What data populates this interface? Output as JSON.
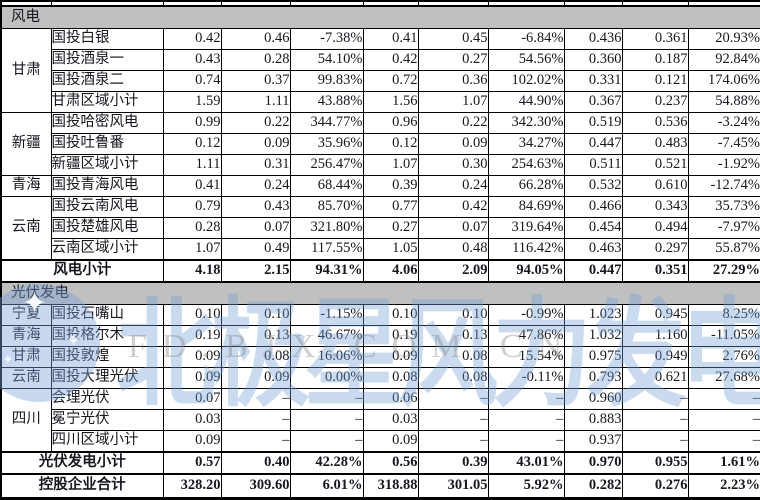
{
  "watermark": {
    "text_cn": "北极星风力发电网",
    "text_latin": "FD.BJX.COM.CN",
    "star_glyph": "✦",
    "colors": {
      "logo_blue": "rgba(124,163,214,0.42)",
      "text_blue": "rgba(116,160,216,0.38)",
      "text_gray": "rgba(128,128,132,0.38)"
    }
  },
  "colors": {
    "section_header_bg": "#c0c0c0",
    "border": "#000000",
    "text": "#17171f",
    "table_bg": "#ffffff"
  },
  "table": {
    "rows": [
      {
        "kind": "section",
        "label": "风电"
      },
      {
        "kind": "data",
        "region": "甘肃",
        "region_span": 4,
        "name": "国投白银",
        "v": [
          "0.42",
          "0.46",
          "-7.38%",
          "0.41",
          "0.45",
          "-6.84%",
          "0.436",
          "0.361",
          "20.93%"
        ]
      },
      {
        "kind": "data",
        "name": "国投酒泉一",
        "v": [
          "0.43",
          "0.28",
          "54.10%",
          "0.42",
          "0.27",
          "54.56%",
          "0.360",
          "0.187",
          "92.84%"
        ]
      },
      {
        "kind": "data",
        "name": "国投酒泉二",
        "v": [
          "0.74",
          "0.37",
          "99.83%",
          "0.72",
          "0.36",
          "102.02%",
          "0.331",
          "0.121",
          "174.06%"
        ]
      },
      {
        "kind": "data",
        "name": "甘肃区域小计",
        "v": [
          "1.59",
          "1.11",
          "43.88%",
          "1.56",
          "1.07",
          "44.90%",
          "0.367",
          "0.237",
          "54.88%"
        ]
      },
      {
        "kind": "data",
        "region": "新疆",
        "region_span": 3,
        "name": "国投哈密风电",
        "v": [
          "0.99",
          "0.22",
          "344.77%",
          "0.96",
          "0.22",
          "342.30%",
          "0.519",
          "0.536",
          "-3.24%"
        ]
      },
      {
        "kind": "data",
        "name": "国投吐鲁番",
        "v": [
          "0.12",
          "0.09",
          "35.96%",
          "0.12",
          "0.09",
          "34.27%",
          "0.447",
          "0.483",
          "-7.45%"
        ]
      },
      {
        "kind": "data",
        "name": "新疆区域小计",
        "v": [
          "1.11",
          "0.31",
          "256.47%",
          "1.07",
          "0.30",
          "254.63%",
          "0.511",
          "0.521",
          "-1.92%"
        ]
      },
      {
        "kind": "data",
        "region": "青海",
        "region_span": 1,
        "name": "国投青海风电",
        "v": [
          "0.41",
          "0.24",
          "68.44%",
          "0.39",
          "0.24",
          "66.28%",
          "0.532",
          "0.610",
          "-12.74%"
        ]
      },
      {
        "kind": "data",
        "region": "云南",
        "region_span": 3,
        "name": "国投云南风电",
        "v": [
          "0.79",
          "0.43",
          "85.70%",
          "0.77",
          "0.42",
          "84.69%",
          "0.466",
          "0.343",
          "35.73%"
        ]
      },
      {
        "kind": "data",
        "name": "国投楚雄风电",
        "v": [
          "0.28",
          "0.07",
          "321.80%",
          "0.27",
          "0.07",
          "319.64%",
          "0.454",
          "0.494",
          "-7.97%"
        ]
      },
      {
        "kind": "data",
        "name": "云南区域小计",
        "v": [
          "1.07",
          "0.49",
          "117.55%",
          "1.05",
          "0.48",
          "116.42%",
          "0.463",
          "0.297",
          "55.87%"
        ]
      },
      {
        "kind": "subtotal",
        "label": "风电小计",
        "v": [
          "4.18",
          "2.15",
          "94.31%",
          "4.06",
          "2.09",
          "94.05%",
          "0.447",
          "0.351",
          "27.29%"
        ]
      },
      {
        "kind": "section",
        "label": "光伏发电"
      },
      {
        "kind": "data",
        "region": "宁夏",
        "region_span": 1,
        "name": "国投石嘴山",
        "v": [
          "0.10",
          "0.10",
          "-1.15%",
          "0.10",
          "0.10",
          "-0.99%",
          "1.023",
          "0.945",
          "8.25%"
        ]
      },
      {
        "kind": "data",
        "region": "青海",
        "region_span": 1,
        "name": "国投格尔木",
        "v": [
          "0.19",
          "0.13",
          "46.67%",
          "0.19",
          "0.13",
          "47.86%",
          "1.032",
          "1.160",
          "-11.05%"
        ]
      },
      {
        "kind": "data",
        "region": "甘肃",
        "region_span": 1,
        "name": "国投敦煌",
        "v": [
          "0.09",
          "0.08",
          "16.06%",
          "0.09",
          "0.08",
          "15.54%",
          "0.975",
          "0.949",
          "2.76%"
        ]
      },
      {
        "kind": "data",
        "region": "云南",
        "region_span": 1,
        "name": "国投大理光伏",
        "v": [
          "0.09",
          "0.09",
          "0.00%",
          "0.08",
          "0.08",
          "-0.11%",
          "0.793",
          "0.621",
          "27.68%"
        ]
      },
      {
        "kind": "data",
        "region": "四川",
        "region_span": 3,
        "name": "会理光伏",
        "v": [
          "0.07",
          "–",
          "–",
          "0.06",
          "–",
          "–",
          "0.960",
          "–",
          "–"
        ]
      },
      {
        "kind": "data",
        "name": "冕宁光伏",
        "v": [
          "0.03",
          "–",
          "–",
          "0.03",
          "–",
          "–",
          "0.883",
          "–",
          "–"
        ]
      },
      {
        "kind": "data",
        "name": "四川区域小计",
        "v": [
          "0.09",
          "–",
          "–",
          "0.09",
          "–",
          "–",
          "0.937",
          "–",
          "–"
        ]
      },
      {
        "kind": "subtotal",
        "label": "光伏发电小计",
        "v": [
          "0.57",
          "0.40",
          "42.28%",
          "0.56",
          "0.39",
          "43.01%",
          "0.970",
          "0.955",
          "1.61%"
        ]
      },
      {
        "kind": "total",
        "label": "控股企业合计",
        "v": [
          "328.20",
          "309.60",
          "6.01%",
          "318.88",
          "301.05",
          "5.92%",
          "0.282",
          "0.276",
          "2.23%"
        ]
      }
    ]
  }
}
